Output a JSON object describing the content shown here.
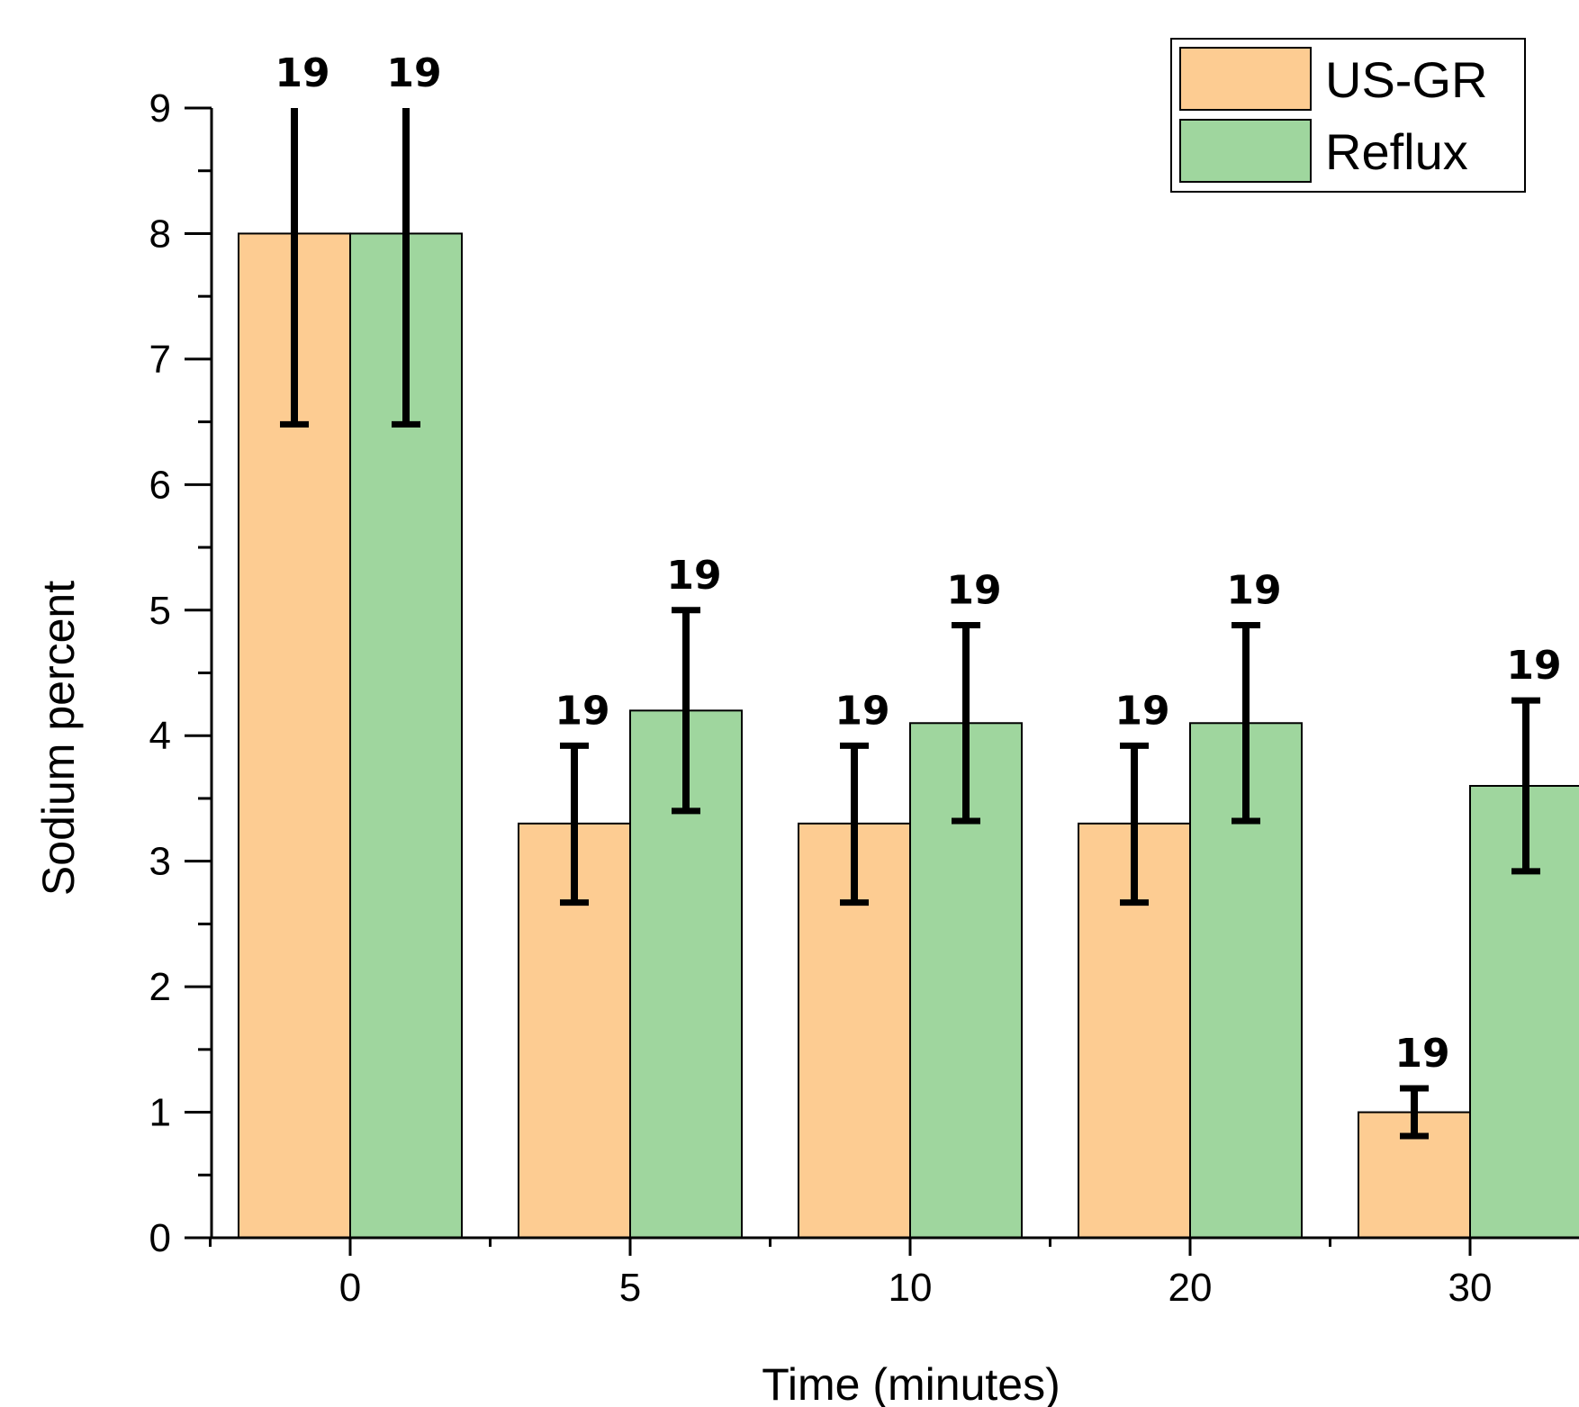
{
  "chart_data": {
    "type": "bar",
    "categories": [
      "0",
      "5",
      "10",
      "20",
      "30"
    ],
    "series": [
      {
        "name": "US-GR",
        "values": [
          8.0,
          3.3,
          3.3,
          3.3,
          1.0
        ],
        "err_low": [
          6.48,
          2.67,
          2.67,
          2.67,
          0.81
        ],
        "err_high": [
          9.0,
          3.92,
          3.92,
          3.92,
          1.19
        ],
        "labels": [
          "19",
          "19",
          "19",
          "19",
          "19"
        ],
        "color": "#FDCC92"
      },
      {
        "name": "Reflux",
        "values": [
          8.0,
          4.2,
          4.1,
          4.1,
          3.6
        ],
        "err_low": [
          6.48,
          3.4,
          3.32,
          3.32,
          2.92
        ],
        "err_high": [
          9.0,
          5.0,
          4.88,
          4.88,
          4.28
        ],
        "labels": [
          "19",
          "19",
          "19",
          "19",
          "19"
        ],
        "color": "#9FD69E"
      }
    ],
    "xlabel": "Time (minutes)",
    "ylabel": "Sodium percent",
    "ylim": [
      0,
      9
    ],
    "yticks": [
      "0",
      "1",
      "2",
      "3",
      "4",
      "5",
      "6",
      "7",
      "8",
      "9"
    ],
    "legend_position": "top-right",
    "grid": false
  }
}
